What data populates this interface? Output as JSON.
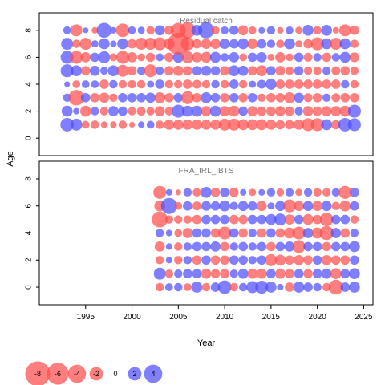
{
  "chart_data": {
    "type": "scatter",
    "subtype": "bubble-residuals",
    "xlabel": "Year",
    "ylabel": "Age",
    "xlim": [
      1990,
      2026
    ],
    "ylim": [
      -1.3,
      9.3
    ],
    "x_ticks": [
      1995,
      2000,
      2005,
      2010,
      2015,
      2020,
      2025
    ],
    "y_ticks": [
      0,
      2,
      4,
      6,
      8
    ],
    "colors": {
      "positive": "#ff4d4d",
      "negative": "#4d4dff"
    },
    "panels": [
      {
        "title": "Residual catch",
        "ages": [
          1,
          2,
          3,
          4,
          5,
          6,
          7,
          8
        ],
        "years": [
          1993,
          1994,
          1995,
          1996,
          1997,
          1998,
          1999,
          2000,
          2001,
          2002,
          2003,
          2004,
          2005,
          2006,
          2007,
          2008,
          2009,
          2010,
          2011,
          2012,
          2013,
          2014,
          2015,
          2016,
          2017,
          2018,
          2019,
          2020,
          2021,
          2022,
          2023,
          2024
        ],
        "residuals": {
          "8": [
            0.5,
            -1.5,
            0.2,
            -0.3,
            2.5,
            0.3,
            -2.0,
            0.5,
            0.4,
            -0.6,
            1.0,
            -0.8,
            -2.5,
            -3.0,
            1.2,
            3.0,
            -0.6,
            0.5,
            0.8,
            -1.0,
            -0.5,
            0.3,
            0.6,
            -0.3,
            0.5,
            -0.4,
            1.2,
            -0.6,
            1.2,
            -0.3,
            -1.5,
            -0.8
          ],
          "7": [
            1.5,
            -0.6,
            -1.5,
            0.4,
            1.2,
            0.3,
            1.2,
            -0.8,
            -1.5,
            -1.5,
            -1.8,
            -1.2,
            -6.0,
            -2.0,
            -0.8,
            -1.0,
            -1.0,
            1.0,
            0.8,
            1.2,
            -1.0,
            0.8,
            0.6,
            -0.6,
            1.2,
            -0.4,
            -0.8,
            -1.8,
            1.2,
            -1.5,
            1.2,
            -0.6
          ],
          "6": [
            1.8,
            -1.8,
            -1.0,
            0.8,
            1.5,
            -0.5,
            -1.8,
            -1.0,
            -0.5,
            -0.8,
            0.5,
            -0.8,
            1.2,
            -1.5,
            -1.0,
            -1.2,
            1.2,
            0.6,
            1.0,
            -0.5,
            0.8,
            1.0,
            -0.4,
            -1.0,
            -0.5,
            0.8,
            -0.7,
            0.6,
            -0.8,
            0.6,
            1.2,
            -0.9
          ],
          "5": [
            1.8,
            1.2,
            -0.8,
            1.0,
            0.5,
            1.2,
            -1.5,
            -0.8,
            0.6,
            -1.8,
            0.6,
            -0.8,
            -1.0,
            -0.8,
            0.8,
            1.0,
            0.8,
            -0.8,
            1.2,
            1.0,
            -0.8,
            -1.2,
            0.8,
            -0.9,
            -0.6,
            0.8,
            -0.6,
            -0.6,
            0.6,
            -0.7,
            -0.8,
            -0.6
          ],
          "4": [
            0.2,
            -0.5,
            0.5,
            0.5,
            -0.8,
            0.6,
            -0.6,
            -0.6,
            -0.6,
            0.4,
            0.8,
            -0.6,
            -0.6,
            -0.8,
            -0.7,
            -0.6,
            0.6,
            -0.6,
            0.8,
            -0.6,
            0.4,
            0.7,
            1.2,
            -0.8,
            -0.8,
            -0.8,
            -0.8,
            -0.8,
            -0.8,
            -0.8,
            0.6,
            -0.6
          ],
          "3": [
            0.6,
            -2.8,
            0.8,
            -0.8,
            -1.0,
            -0.6,
            0.8,
            0.8,
            0.8,
            1.0,
            -1.2,
            -0.8,
            0.8,
            -1.8,
            -0.8,
            1.2,
            0.8,
            -0.8,
            0.8,
            -0.8,
            0.8,
            -0.6,
            -0.8,
            -0.8,
            -1.2,
            1.0,
            -0.7,
            -0.8,
            0.6,
            -0.7,
            -0.8,
            -0.8
          ],
          "2": [
            1.2,
            0.3,
            -1.2,
            0.6,
            -0.6,
            1.0,
            0.8,
            -0.6,
            -0.7,
            -0.6,
            -1.0,
            -0.6,
            1.8,
            1.2,
            1.2,
            -1.0,
            1.2,
            -1.0,
            -1.2,
            0.8,
            -1.0,
            -0.8,
            -0.8,
            -1.0,
            -0.8,
            0.6,
            -1.0,
            -0.8,
            -1.0,
            -1.0,
            -1.2,
            1.8
          ],
          "1": [
            2.0,
            1.5,
            -0.5,
            -0.6,
            -0.3,
            -0.3,
            -0.6,
            -0.2,
            0.3,
            0.5,
            -0.6,
            -1.0,
            -1.0,
            -1.0,
            -1.0,
            -1.0,
            -1.0,
            -1.5,
            -1.5,
            -1.2,
            -1.2,
            -1.2,
            -1.0,
            -0.8,
            -0.8,
            -1.0,
            -1.8,
            -1.8,
            1.2,
            -0.8,
            2.0,
            1.8
          ]
        }
      },
      {
        "title": "FRA_IRL_IBTS",
        "ages": [
          0,
          1,
          2,
          3,
          4,
          5,
          6,
          7
        ],
        "years": [
          2003,
          2004,
          2005,
          2006,
          2007,
          2008,
          2009,
          2010,
          2011,
          2012,
          2013,
          2014,
          2015,
          2016,
          2017,
          2018,
          2019,
          2020,
          2021,
          2022,
          2023,
          2024
        ],
        "residuals": {
          "7": [
            -1.8,
            0.3,
            -0.2,
            0.6,
            -0.6,
            1.2,
            -0.8,
            0.8,
            -0.8,
            0.3,
            -0.4,
            0.3,
            0.6,
            -0.5,
            0.6,
            -0.4,
            0.6,
            -0.6,
            -0.6,
            0.6,
            -1.8,
            0.8
          ],
          "6": [
            -1.2,
            3.0,
            -0.5,
            0.8,
            -0.7,
            0.9,
            0.8,
            1.2,
            0.6,
            1.0,
            0.8,
            -1.0,
            0.4,
            1.0,
            -1.8,
            -1.0,
            1.0,
            -1.0,
            1.0,
            -0.6,
            -1.2,
            0.8
          ],
          "5": [
            -3.0,
            -0.6,
            -0.6,
            -0.6,
            -0.8,
            0.8,
            0.8,
            0.8,
            -0.8,
            -0.8,
            0.8,
            0.8,
            1.2,
            1.5,
            -1.0,
            0.8,
            -1.2,
            -0.8,
            -2.0,
            0.8,
            0.8,
            -0.6
          ],
          "4": [
            0.6,
            0.3,
            -0.5,
            -1.0,
            0.8,
            0.8,
            -0.8,
            -1.8,
            0.8,
            -0.8,
            0.6,
            -0.8,
            0.8,
            -0.8,
            -1.2,
            -1.8,
            1.0,
            -1.2,
            -2.2,
            1.0,
            -0.8,
            0.6
          ],
          "3": [
            -1.0,
            0.3,
            -0.6,
            0.6,
            0.8,
            0.8,
            1.0,
            -0.8,
            0.6,
            0.8,
            0.6,
            0.8,
            -0.8,
            0.8,
            1.0,
            -1.8,
            0.8,
            0.8,
            -0.8,
            0.8,
            0.8,
            1.2
          ],
          "2": [
            -0.6,
            0.3,
            -0.6,
            0.6,
            -0.8,
            0.8,
            -0.8,
            -0.8,
            0.8,
            0.8,
            0.6,
            0.8,
            -1.5,
            -1.2,
            -0.8,
            -1.0,
            -0.8,
            0.8,
            -1.0,
            -0.8,
            -0.8,
            0.8
          ],
          "1": [
            1.5,
            -0.6,
            0.6,
            0.8,
            0.8,
            -1.0,
            -0.8,
            -0.8,
            0.6,
            1.0,
            -1.0,
            -1.0,
            0.8,
            -1.0,
            -0.8,
            0.8,
            -0.8,
            0.8,
            1.0,
            -1.2,
            0.8,
            1.2
          ],
          "0": [
            -0.6,
            0.5,
            0.6,
            -0.5,
            1.2,
            -0.6,
            0.8,
            2.0,
            -0.6,
            0.6,
            1.5,
            1.8,
            1.2,
            0.3,
            -0.8,
            1.2,
            0.8,
            0.6,
            -0.6,
            -2.5,
            0.8,
            1.2
          ]
        }
      }
    ],
    "legend": {
      "values": [
        -8,
        -6,
        -4,
        -2,
        0,
        2,
        4
      ],
      "labels": [
        "-8",
        "-6",
        "-4",
        "-2",
        "0",
        "2",
        "4"
      ]
    }
  }
}
